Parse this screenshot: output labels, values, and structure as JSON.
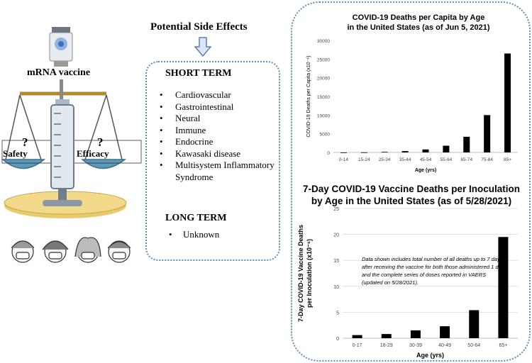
{
  "illustration": {
    "vaccine_label": "mRNA vaccine",
    "left_pan_label": "Safety",
    "right_pan_label": "Efficacy",
    "question_mark": "?"
  },
  "side_effects": {
    "title": "Potential Side Effects",
    "short_term_title": "SHORT TERM",
    "short_term_items": [
      "Cardiovascular",
      "Gastrointestinal",
      "Neural",
      "Immune",
      "Endocrine",
      "Kawasaki disease",
      "Multisystem Inflammatory Syndrome"
    ],
    "long_term_title": "LONG TERM",
    "long_term_items": [
      "Unknown"
    ]
  },
  "colors": {
    "box_border": "#5b8fb9",
    "bar": "#000000",
    "arrow_fill": "#dde6f3"
  },
  "chart_data": [
    {
      "type": "bar",
      "title": "COVID-19 Deaths per Capita by Age in the United States (as of Jun 5, 2021)",
      "title_lines": [
        "COVID-19 Deaths per Capita by Age",
        "in the United States (as of Jun 5, 2021)"
      ],
      "xlabel": "Age (yrs)",
      "ylabel": "COVID-19 Deaths per Capita (x10⁻⁶)",
      "categories": [
        "0-14",
        "15-24",
        "25-34",
        "35-44",
        "45-54",
        "55-64",
        "65-74",
        "75-84",
        "85+"
      ],
      "values": [
        8,
        30,
        150,
        350,
        800,
        1800,
        4200,
        10000,
        26500
      ],
      "ylim": [
        0,
        30000
      ],
      "yticks": [
        0,
        5000,
        10000,
        15000,
        20000,
        25000,
        30000
      ],
      "grid": false,
      "legend": "none"
    },
    {
      "type": "bar",
      "title": "7-Day COVID-19 Vaccine Deaths per Inoculation by Age in the United States (as of 5/28/2021)",
      "title_lines": [
        "7-Day COVID-19 Vaccine Deaths per Inoculation",
        "by Age in the United States (as of 5/28/2021)"
      ],
      "xlabel": "Age (yrs)",
      "ylabel_lines": [
        "7-Day COVID-19 Vaccine Deaths",
        "per Inoculation  (x10⁻⁶)"
      ],
      "categories": [
        "0-17",
        "18-29",
        "30-39",
        "40-49",
        "50-64",
        "65+"
      ],
      "values": [
        0.6,
        0.8,
        1.5,
        2.3,
        5.4,
        19.5
      ],
      "ylim": [
        0,
        25
      ],
      "yticks": [
        0,
        5,
        10,
        15,
        20,
        25
      ],
      "grid": true,
      "legend": "none",
      "annotation": "Data shown includes total number of all deaths up to 7 days after receiving the vaccine for both those administered 1 dose and the complete series of doses reported in VAERS (updated on 5/28/2021)."
    }
  ]
}
